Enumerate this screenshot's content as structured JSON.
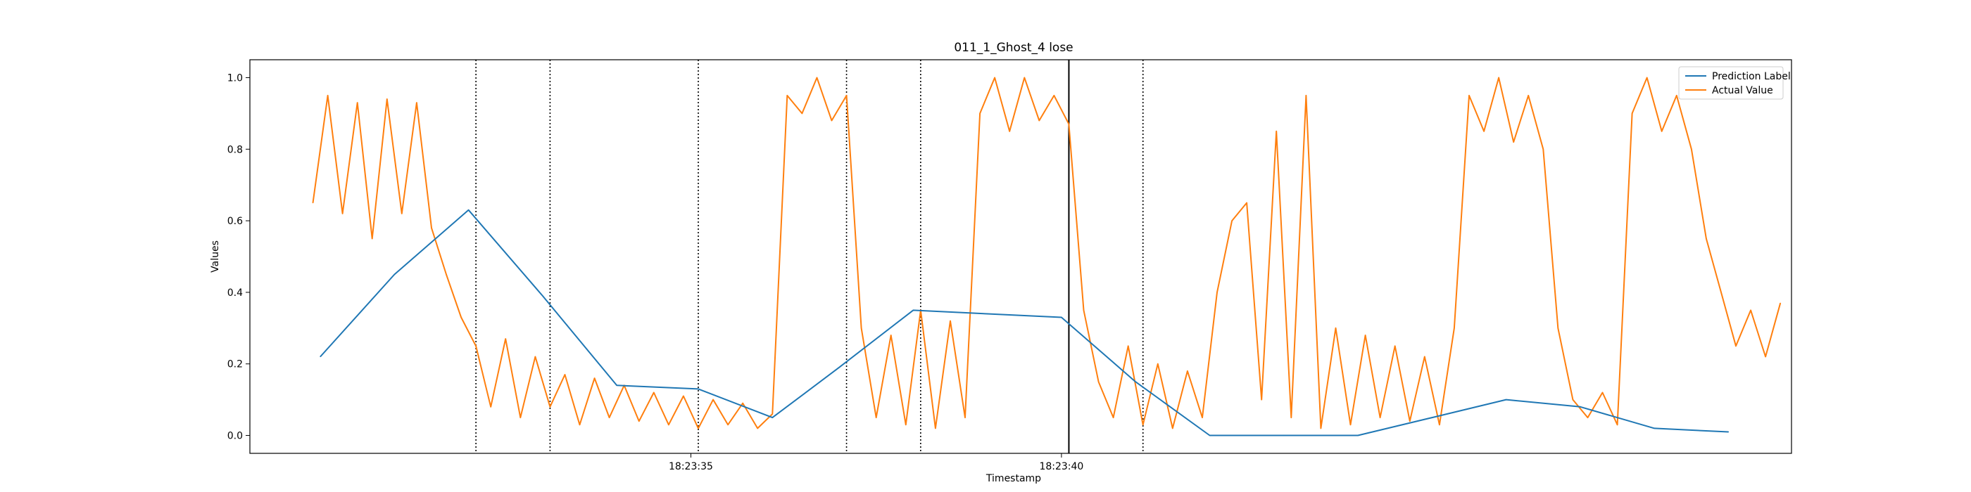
{
  "chart_data": {
    "type": "line",
    "title": "011_1_Ghost_4 lose",
    "xlabel": "Timestamp",
    "ylabel": "Values",
    "x_range_seconds": [
      29.05,
      49.85
    ],
    "ylim": [
      -0.05,
      1.05
    ],
    "x_ticks": [
      {
        "label": "18:23:35",
        "value": 35.0
      },
      {
        "label": "18:23:40",
        "value": 40.0
      }
    ],
    "y_ticks": [
      {
        "label": "0.0",
        "value": 0.0
      },
      {
        "label": "0.2",
        "value": 0.2
      },
      {
        "label": "0.4",
        "value": 0.4
      },
      {
        "label": "0.6",
        "value": 0.6
      },
      {
        "label": "0.8",
        "value": 0.8
      },
      {
        "label": "1.0",
        "value": 1.0
      }
    ],
    "legend_position": "top-right",
    "grid": false,
    "series": [
      {
        "name": "Prediction Label",
        "color": "#1f77b4",
        "x": [
          30.0,
          31.0,
          32.0,
          33.0,
          34.0,
          35.1,
          36.1,
          37.0,
          38.0,
          39.0,
          40.0,
          41.0,
          42.0,
          43.0,
          44.0,
          45.0,
          46.0,
          47.0,
          48.0,
          49.0
        ],
        "y": [
          0.22,
          0.45,
          0.63,
          0.39,
          0.14,
          0.13,
          0.05,
          0.19,
          0.35,
          0.34,
          0.33,
          0.15,
          0.0,
          0.0,
          0.0,
          0.05,
          0.1,
          0.08,
          0.02,
          0.01
        ]
      },
      {
        "name": "Actual Value",
        "color": "#ff7f0e",
        "x": [
          29.9,
          30.1,
          30.3,
          30.5,
          30.7,
          30.9,
          31.1,
          31.3,
          31.5,
          31.7,
          31.9,
          32.1,
          32.3,
          32.5,
          32.7,
          32.9,
          33.1,
          33.3,
          33.5,
          33.7,
          33.9,
          34.1,
          34.3,
          34.5,
          34.7,
          34.9,
          35.1,
          35.3,
          35.5,
          35.7,
          35.9,
          36.1,
          36.3,
          36.5,
          36.7,
          36.9,
          37.1,
          37.3,
          37.5,
          37.7,
          37.9,
          38.1,
          38.3,
          38.5,
          38.7,
          38.9,
          39.1,
          39.3,
          39.5,
          39.7,
          39.9,
          40.1,
          40.3,
          40.5,
          40.7,
          40.9,
          41.1,
          41.3,
          41.5,
          41.7,
          41.9,
          42.1,
          42.3,
          42.5,
          42.7,
          42.9,
          43.1,
          43.3,
          43.5,
          43.7,
          43.9,
          44.1,
          44.3,
          44.5,
          44.7,
          44.9,
          45.1,
          45.3,
          45.5,
          45.7,
          45.9,
          46.1,
          46.3,
          46.5,
          46.7,
          46.9,
          47.1,
          47.3,
          47.5,
          47.7,
          47.9,
          48.1,
          48.3,
          48.5,
          48.7,
          48.9,
          49.1,
          49.3,
          49.5,
          49.7
        ],
        "y": [
          0.65,
          0.95,
          0.62,
          0.93,
          0.55,
          0.94,
          0.62,
          0.93,
          0.58,
          0.45,
          0.33,
          0.25,
          0.08,
          0.27,
          0.05,
          0.22,
          0.08,
          0.17,
          0.03,
          0.16,
          0.05,
          0.14,
          0.04,
          0.12,
          0.03,
          0.11,
          0.02,
          0.1,
          0.03,
          0.09,
          0.02,
          0.06,
          0.95,
          0.9,
          1.0,
          0.88,
          0.95,
          0.3,
          0.05,
          0.28,
          0.03,
          0.35,
          0.02,
          0.32,
          0.05,
          0.9,
          1.0,
          0.85,
          1.0,
          0.88,
          0.95,
          0.87,
          0.35,
          0.15,
          0.05,
          0.25,
          0.03,
          0.2,
          0.02,
          0.18,
          0.05,
          0.4,
          0.6,
          0.65,
          0.1,
          0.85,
          0.05,
          0.95,
          0.02,
          0.3,
          0.03,
          0.28,
          0.05,
          0.25,
          0.04,
          0.22,
          0.03,
          0.3,
          0.95,
          0.85,
          1.0,
          0.82,
          0.95,
          0.8,
          0.3,
          0.1,
          0.05,
          0.12,
          0.03,
          0.9,
          1.0,
          0.85,
          0.95,
          0.8,
          0.55,
          0.4,
          0.25,
          0.35,
          0.22,
          0.37
        ]
      }
    ],
    "vertical_lines": [
      {
        "x": 32.1,
        "style": "dotted",
        "color": "#000000"
      },
      {
        "x": 33.1,
        "style": "dotted",
        "color": "#000000"
      },
      {
        "x": 35.1,
        "style": "dotted",
        "color": "#000000"
      },
      {
        "x": 37.1,
        "style": "dotted",
        "color": "#000000"
      },
      {
        "x": 38.1,
        "style": "dotted",
        "color": "#000000"
      },
      {
        "x": 40.1,
        "style": "solid",
        "color": "#000000"
      },
      {
        "x": 41.1,
        "style": "dotted",
        "color": "#000000"
      }
    ]
  }
}
